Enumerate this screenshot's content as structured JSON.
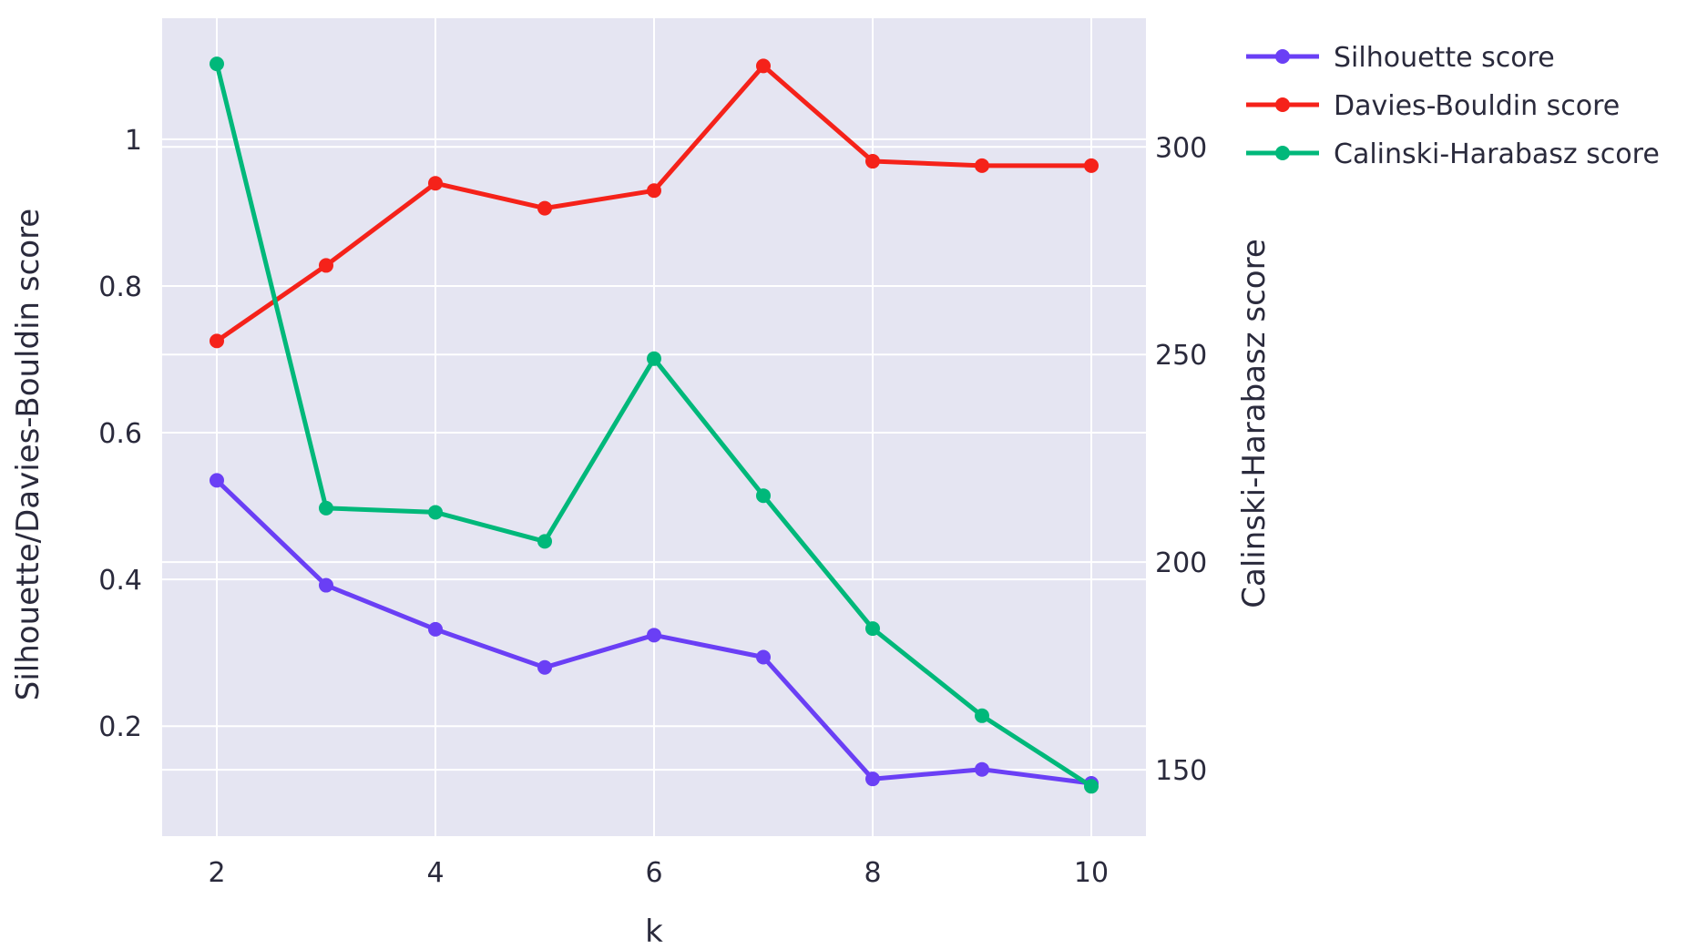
{
  "chart_data": {
    "type": "line",
    "x": [
      2,
      3,
      4,
      5,
      6,
      7,
      8,
      9,
      10
    ],
    "xlabel": "k",
    "xlim": [
      1.5,
      10.5
    ],
    "xticks": [
      2,
      4,
      6,
      8,
      10
    ],
    "y_left": {
      "label": "Silhouette/Davies-Bouldin score",
      "range": [
        0.05,
        1.165
      ],
      "ticks": [
        0.2,
        0.4,
        0.6,
        0.8,
        1
      ]
    },
    "y_right": {
      "label": "Calinski-Harabasz score",
      "range": [
        134,
        331
      ],
      "ticks": [
        150,
        200,
        250,
        300
      ]
    },
    "grid": true,
    "legend_position": "right-top",
    "plot_background": "#e5e5f2",
    "series": [
      {
        "name": "Silhouette score",
        "axis": "left",
        "color": "#6a3ff5",
        "values": [
          0.535,
          0.392,
          0.332,
          0.28,
          0.324,
          0.294,
          0.128,
          0.141,
          0.122
        ]
      },
      {
        "name": "Davies-Bouldin score",
        "axis": "left",
        "color": "#f5221a",
        "values": [
          0.725,
          0.828,
          0.94,
          0.906,
          0.93,
          1.1,
          0.97,
          0.964,
          0.964
        ]
      },
      {
        "name": "Calinski-Harabasz score",
        "axis": "right",
        "color": "#00b87a",
        "values": [
          320,
          213,
          212,
          205,
          249,
          216,
          184,
          163,
          146
        ]
      }
    ]
  }
}
